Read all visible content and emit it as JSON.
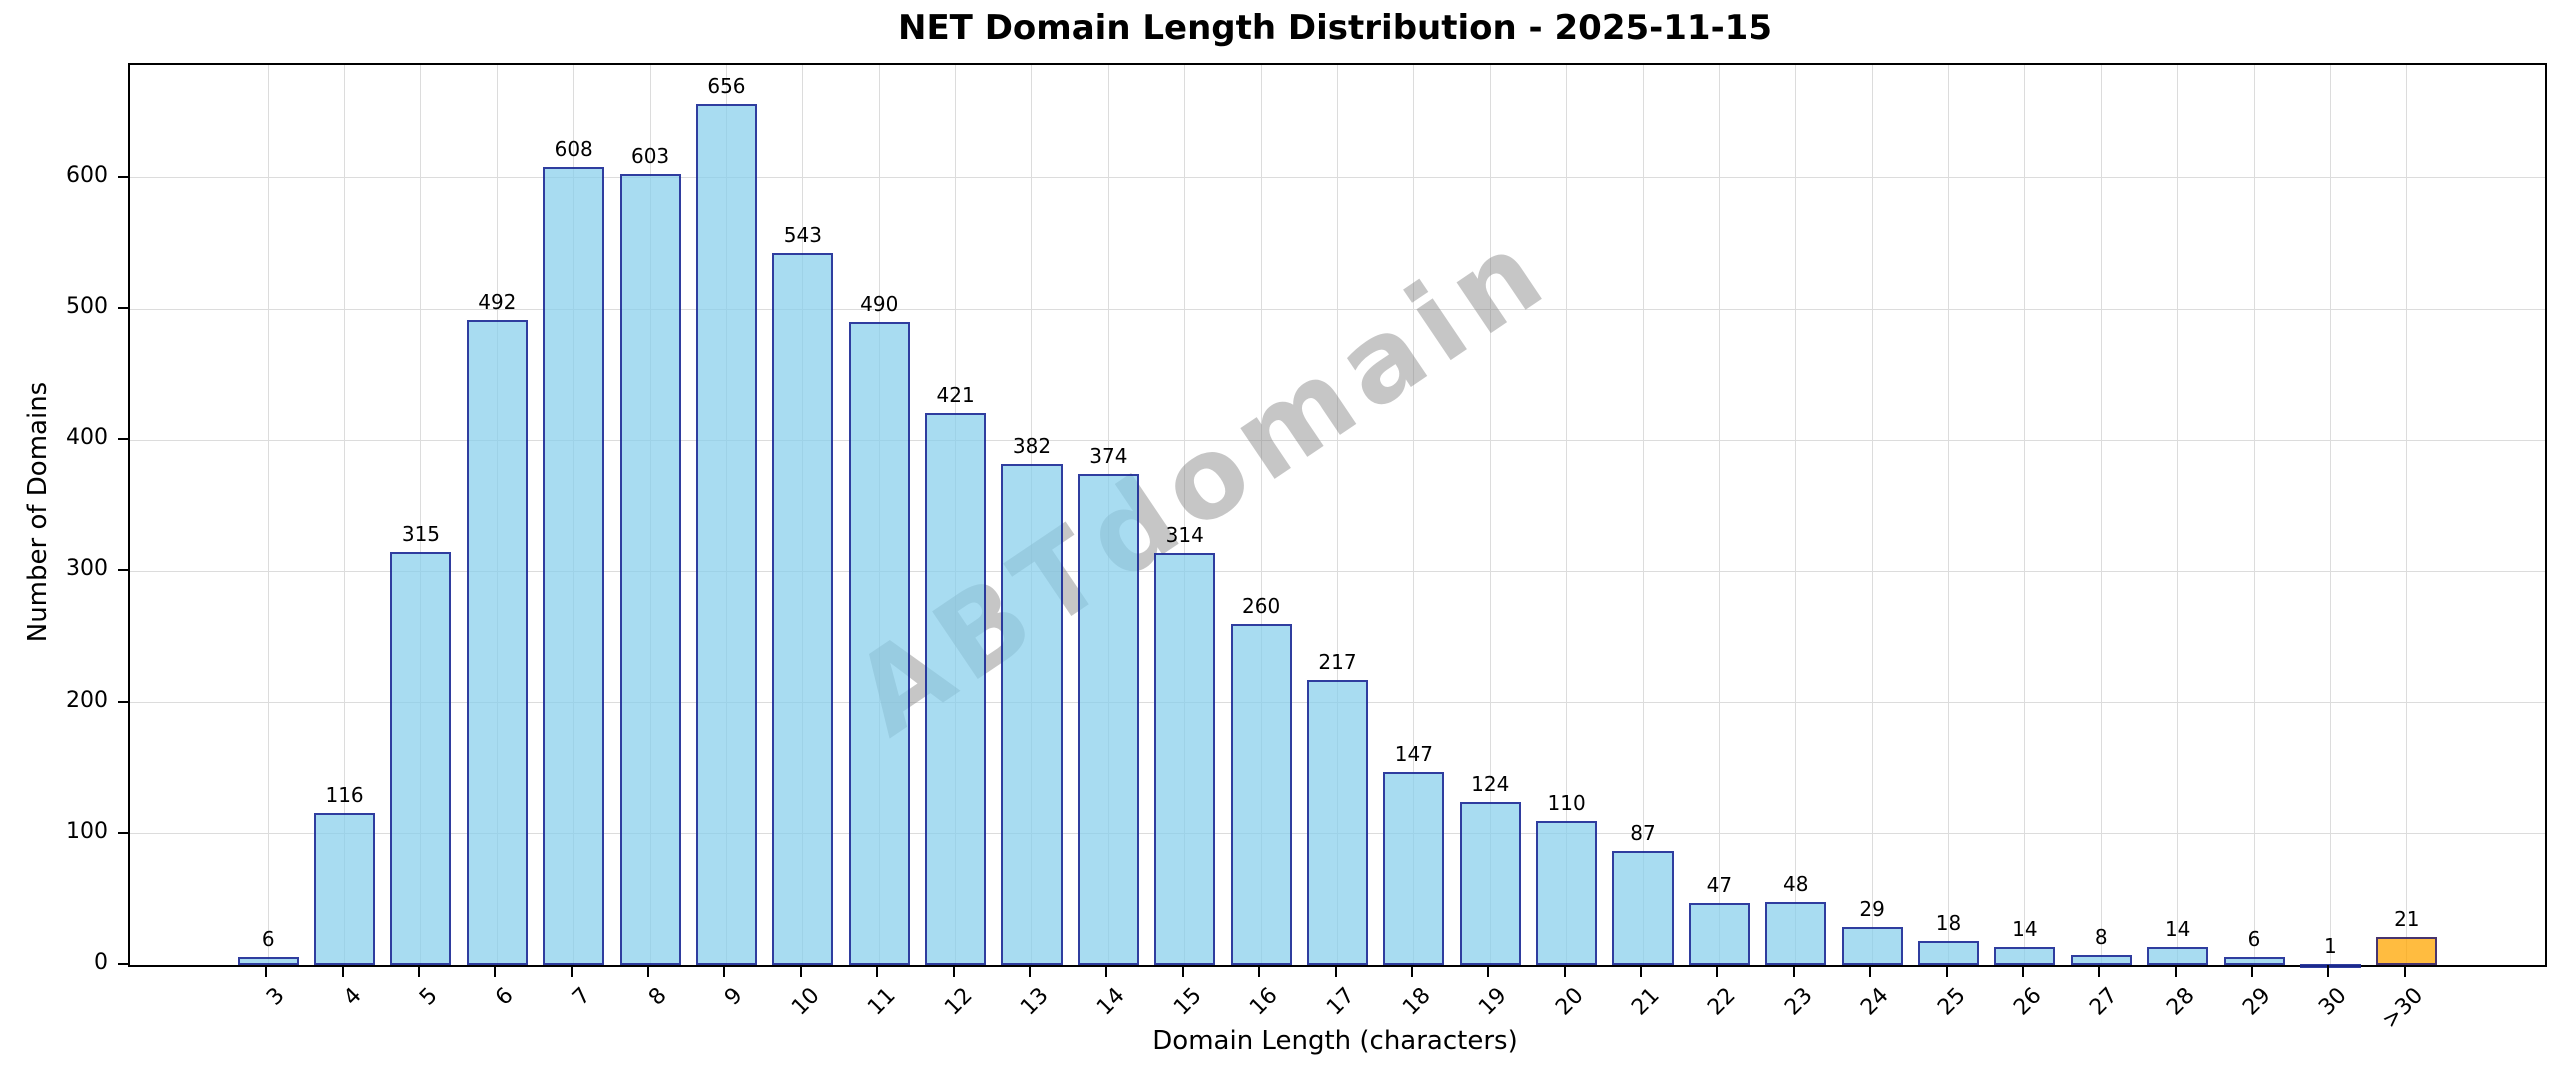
{
  "figure": {
    "title": "NET Domain Length Distribution - 2025-11-15",
    "watermark": "ABTdomain"
  },
  "chart_data": {
    "type": "bar",
    "title": "NET Domain Length Distribution - 2025-11-15",
    "xlabel": "Domain Length (characters)",
    "ylabel": "Number of Domains",
    "categories": [
      "3",
      "4",
      "5",
      "6",
      "7",
      "8",
      "9",
      "10",
      "11",
      "12",
      "13",
      "14",
      "15",
      "16",
      "17",
      "18",
      "19",
      "20",
      "21",
      "22",
      "23",
      "24",
      "25",
      "26",
      "27",
      "28",
      "29",
      "30",
      ">30"
    ],
    "values": [
      6,
      116,
      315,
      492,
      608,
      603,
      656,
      543,
      490,
      421,
      382,
      374,
      314,
      260,
      217,
      147,
      124,
      110,
      87,
      47,
      48,
      29,
      18,
      14,
      8,
      14,
      6,
      1,
      21
    ],
    "yticks": [
      0,
      100,
      200,
      300,
      400,
      500,
      600
    ],
    "ylim": [
      0,
      686
    ],
    "grid": true,
    "legend": null,
    "bar_fill": "rgba(135,206,235,0.72)",
    "bar_edge": "rgba(0,0,128,0.72)",
    "highlight_index": 28,
    "highlight_fill": "rgba(255,165,0,0.75)",
    "watermark_text": "ABTdomain",
    "watermark_color": "rgba(128,128,128,0.45)",
    "frame_color": "#000000",
    "grid_color": "#dcdcdc"
  }
}
